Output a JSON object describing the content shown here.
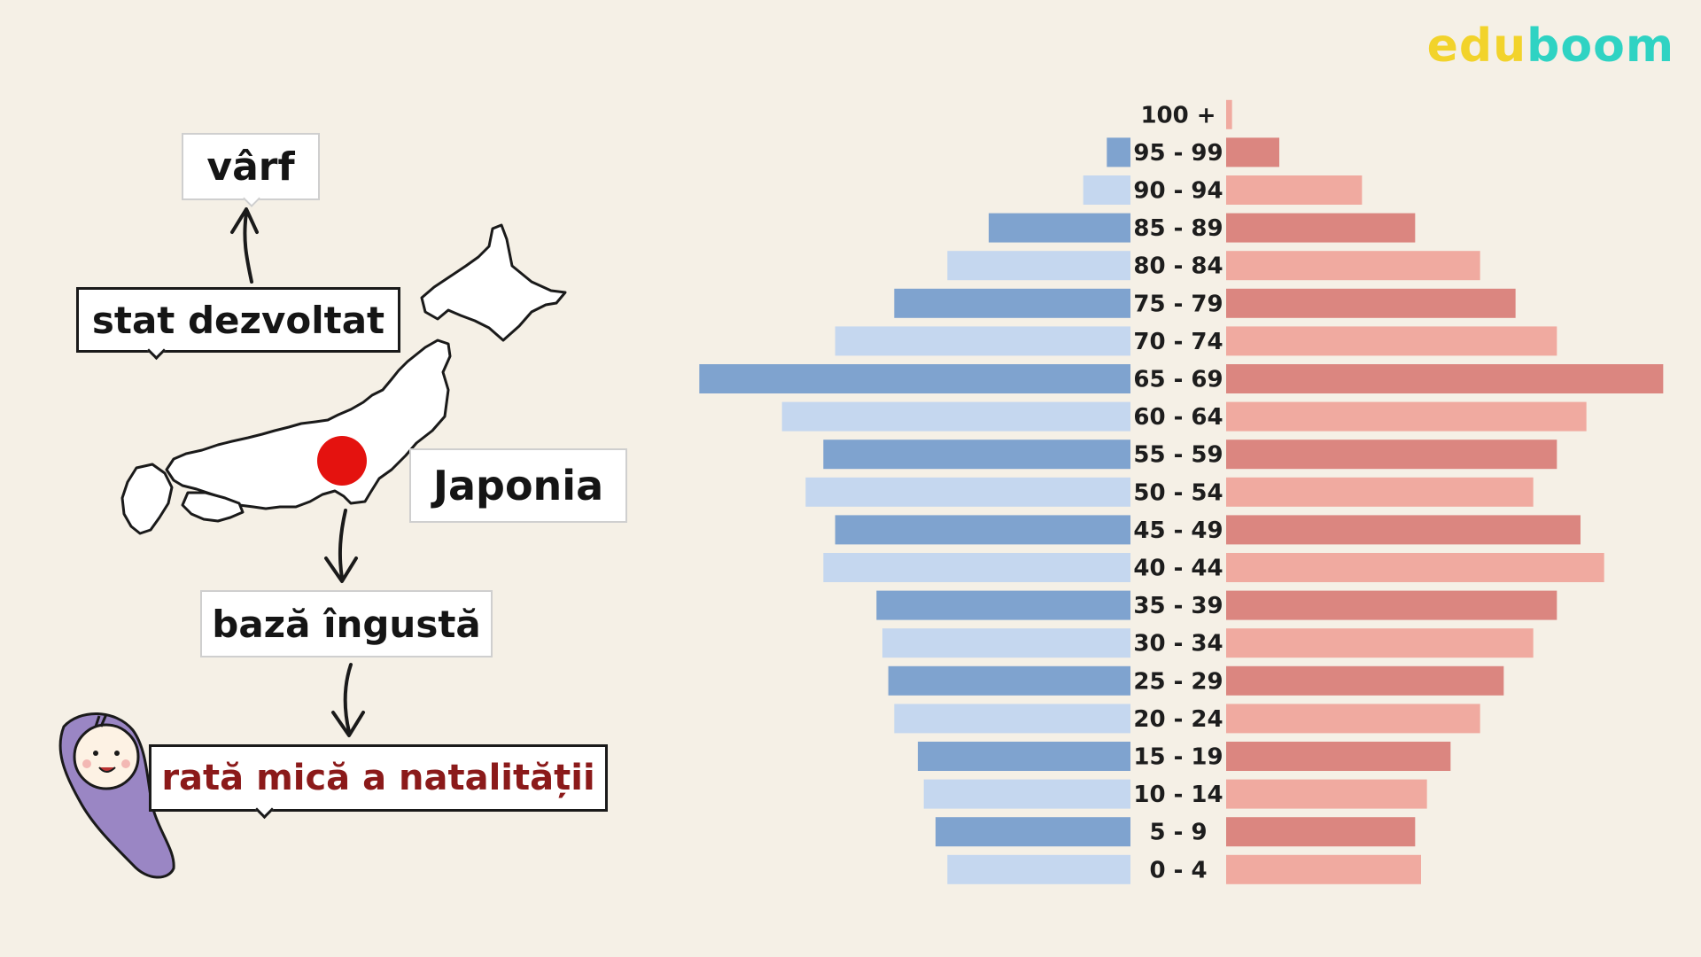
{
  "logo": {
    "part1": "edu",
    "part2": "boom",
    "color1": "#f2d32b",
    "color2": "#2fd3c3"
  },
  "labels": {
    "varf": "vârf",
    "stat": "stat dezvoltat",
    "japonia": "Japonia",
    "baza": "bază îngustă",
    "rata": "rată mică a natalității"
  },
  "icons": [
    "japan-map-icon",
    "japan-flag-icon",
    "baby-icon",
    "arrow-icon"
  ],
  "chart_data": {
    "type": "bar",
    "subtype": "population-pyramid",
    "categories": [
      "100 +",
      "95 - 99",
      "90 - 94",
      "85 - 89",
      "80 - 84",
      "75 - 79",
      "70 - 74",
      "65 - 69",
      "60 - 64",
      "55 - 59",
      "50 - 54",
      "45 - 49",
      "40 - 44",
      "35 - 39",
      "30 - 34",
      "25 - 29",
      "20 - 24",
      "15 - 19",
      "10 - 14",
      "5 - 9",
      "0 - 4"
    ],
    "series": [
      {
        "side": "left",
        "values": [
          0,
          0.4,
          0.8,
          2.4,
          3.1,
          4.0,
          5.0,
          7.3,
          5.9,
          5.2,
          5.5,
          5.0,
          5.2,
          4.3,
          4.2,
          4.1,
          4.0,
          3.6,
          3.5,
          3.3,
          3.1
        ],
        "colors": [
          "#c5d7ef",
          "#7fa3cf"
        ]
      },
      {
        "side": "right",
        "values": [
          0.1,
          0.9,
          2.3,
          3.2,
          4.3,
          4.9,
          5.6,
          7.4,
          6.1,
          5.6,
          5.2,
          6.0,
          6.4,
          5.6,
          5.2,
          4.7,
          4.3,
          3.8,
          3.4,
          3.2,
          3.3
        ],
        "colors": [
          "#f0aaa0",
          "#db8680"
        ]
      }
    ],
    "xlim": [
      0,
      7.5
    ],
    "title": "",
    "xlabel": "",
    "ylabel": "",
    "grid": false,
    "legend": "none"
  }
}
